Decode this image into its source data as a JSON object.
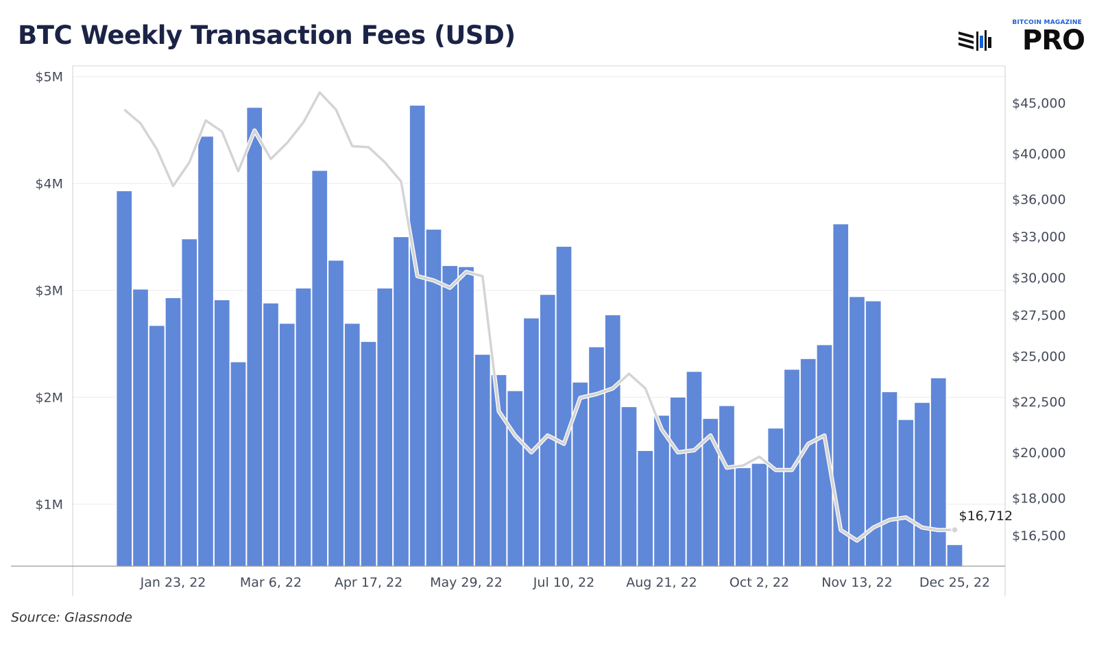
{
  "header": {
    "title": "BTC Weekly Transaction Fees (USD)",
    "logo_top": "BITCOIN MAGAZINE",
    "logo_main": "PRO"
  },
  "footer": {
    "source": "Source: Glassnode"
  },
  "chart_data": {
    "type": "bar",
    "title": "BTC Weekly Transaction Fees (USD)",
    "x": [
      "2022-01-02",
      "2022-01-09",
      "2022-01-16",
      "2022-01-23",
      "2022-01-30",
      "2022-02-06",
      "2022-02-13",
      "2022-02-20",
      "2022-02-27",
      "2022-03-06",
      "2022-03-13",
      "2022-03-20",
      "2022-03-27",
      "2022-04-03",
      "2022-04-10",
      "2022-04-17",
      "2022-04-24",
      "2022-05-01",
      "2022-05-08",
      "2022-05-15",
      "2022-05-22",
      "2022-05-29",
      "2022-06-05",
      "2022-06-12",
      "2022-06-19",
      "2022-06-26",
      "2022-07-03",
      "2022-07-10",
      "2022-07-17",
      "2022-07-24",
      "2022-07-31",
      "2022-08-07",
      "2022-08-14",
      "2022-08-21",
      "2022-08-28",
      "2022-09-04",
      "2022-09-11",
      "2022-09-18",
      "2022-09-25",
      "2022-10-02",
      "2022-10-09",
      "2022-10-16",
      "2022-10-23",
      "2022-10-30",
      "2022-11-06",
      "2022-11-13",
      "2022-11-20",
      "2022-11-27",
      "2022-12-04",
      "2022-12-11",
      "2022-12-18",
      "2022-12-25",
      "2023-01-01"
    ],
    "x_tick_labels": [
      "Jan 23, 22",
      "Mar 6, 22",
      "Apr 17, 22",
      "May 29, 22",
      "Jul 10, 22",
      "Aug 21, 22",
      "Oct 2, 22",
      "Nov 13, 22",
      "Dec 25, 22"
    ],
    "x_tick_indices": [
      3,
      9,
      15,
      21,
      27,
      33,
      39,
      45,
      51
    ],
    "series": [
      {
        "name": "",
        "axis": "left",
        "kind": "bar",
        "color": "#6088d9",
        "values": [
          3.93,
          3.01,
          2.67,
          2.93,
          3.48,
          4.44,
          2.91,
          2.33,
          4.71,
          2.88,
          2.69,
          3.02,
          4.12,
          3.28,
          2.69,
          2.52,
          3.02,
          3.5,
          4.73,
          3.57,
          3.23,
          3.22,
          2.4,
          2.21,
          2.06,
          2.74,
          2.96,
          3.41,
          2.14,
          2.47,
          2.77,
          1.91,
          1.5,
          1.83,
          2.0,
          2.24,
          1.8,
          1.92,
          1.34,
          1.38,
          1.71,
          2.26,
          2.36,
          2.49,
          3.62,
          2.94,
          2.9,
          2.05,
          1.79,
          1.95,
          2.18,
          0.62,
          null
        ]
      },
      {
        "name": "",
        "axis": "right",
        "kind": "line",
        "color": "#d4d4d4",
        "values": [
          44300,
          42900,
          40400,
          37100,
          39200,
          43200,
          42100,
          38400,
          42200,
          39500,
          41000,
          43000,
          46100,
          44300,
          40700,
          40600,
          39200,
          37500,
          30100,
          29800,
          29300,
          30400,
          30100,
          22000,
          20800,
          20000,
          20800,
          20400,
          22700,
          22900,
          23200,
          24000,
          23200,
          21100,
          20000,
          20100,
          20800,
          19300,
          19400,
          19800,
          19200,
          19200,
          20400,
          20800,
          16700,
          16300,
          16800,
          17100,
          17200,
          16800,
          16700,
          16712,
          null
        ]
      }
    ],
    "left_axis": {
      "unit": "USD",
      "ticks": [
        1,
        2,
        3,
        4,
        5
      ],
      "tick_labels": [
        "$1M",
        "$2M",
        "$3M",
        "$4M",
        "$5M"
      ],
      "ylim": [
        0.42,
        5.1
      ]
    },
    "right_axis": {
      "scale": "log",
      "ticks": [
        16500,
        18000,
        20000,
        22500,
        25000,
        27500,
        30000,
        33000,
        36000,
        40000,
        45000
      ],
      "tick_labels": [
        "$16,500",
        "$18,000",
        "$20,000",
        "$22,500",
        "$25,000",
        "$27,500",
        "$30,000",
        "$33,000",
        "$36,000",
        "$40,000",
        "$45,000"
      ]
    },
    "annotation": {
      "text": "$16,712",
      "index": 51,
      "value": 16712
    },
    "grid": true
  }
}
